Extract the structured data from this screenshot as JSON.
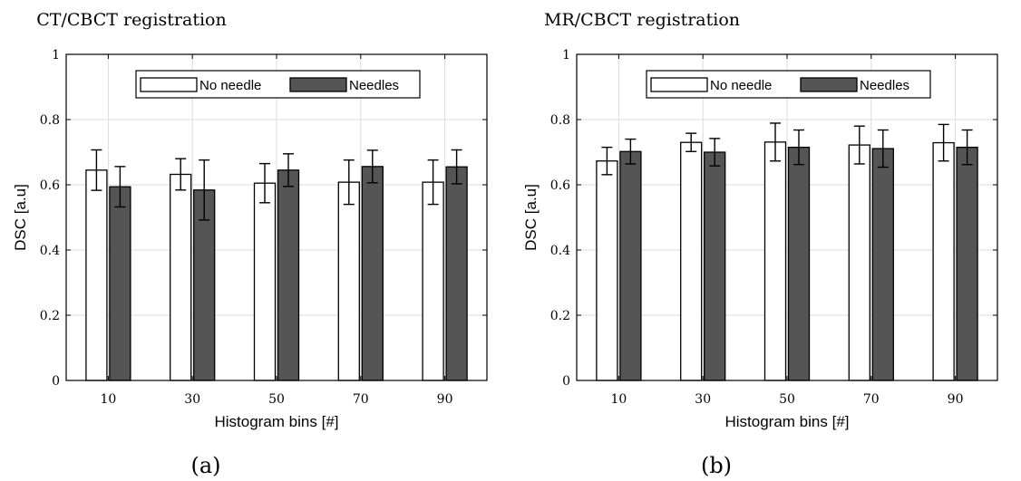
{
  "figure": {
    "colors": {
      "no_needle": "#ffffff",
      "needles": "#555555",
      "grid": "#dcdcdc",
      "axis": "#000000"
    }
  },
  "chart_data": [
    {
      "type": "bar",
      "title": "CT/CBCT registration",
      "xlabel": "Histogram bins [#]",
      "ylabel": "DSC [a.u]",
      "panel_label": "(a)",
      "categories": [
        "10",
        "30",
        "50",
        "70",
        "90"
      ],
      "ylim": [
        0,
        1
      ],
      "yticks": [
        "0",
        "0.2",
        "0.4",
        "0.6",
        "0.8",
        "1"
      ],
      "grid": true,
      "legend_position": "top-center",
      "series": [
        {
          "name": "No needle",
          "color": "#ffffff",
          "values": [
            0.645,
            0.632,
            0.605,
            0.608,
            0.608
          ],
          "errors": [
            0.062,
            0.048,
            0.06,
            0.068,
            0.068
          ]
        },
        {
          "name": "Needles",
          "color": "#555555",
          "values": [
            0.594,
            0.584,
            0.645,
            0.656,
            0.655
          ],
          "errors": [
            0.062,
            0.092,
            0.05,
            0.05,
            0.052
          ]
        }
      ]
    },
    {
      "type": "bar",
      "title": "MR/CBCT registration",
      "xlabel": "Histogram bins [#]",
      "ylabel": "DSC [a.u]",
      "panel_label": "(b)",
      "categories": [
        "10",
        "30",
        "50",
        "70",
        "90"
      ],
      "ylim": [
        0,
        1
      ],
      "yticks": [
        "0",
        "0.2",
        "0.4",
        "0.6",
        "0.8",
        "1"
      ],
      "grid": true,
      "legend_position": "top-center",
      "series": [
        {
          "name": "No needle",
          "color": "#ffffff",
          "values": [
            0.673,
            0.73,
            0.731,
            0.722,
            0.729
          ],
          "errors": [
            0.042,
            0.028,
            0.058,
            0.058,
            0.056
          ]
        },
        {
          "name": "Needles",
          "color": "#555555",
          "values": [
            0.702,
            0.7,
            0.715,
            0.711,
            0.715
          ],
          "errors": [
            0.038,
            0.042,
            0.053,
            0.057,
            0.053
          ]
        }
      ]
    }
  ]
}
